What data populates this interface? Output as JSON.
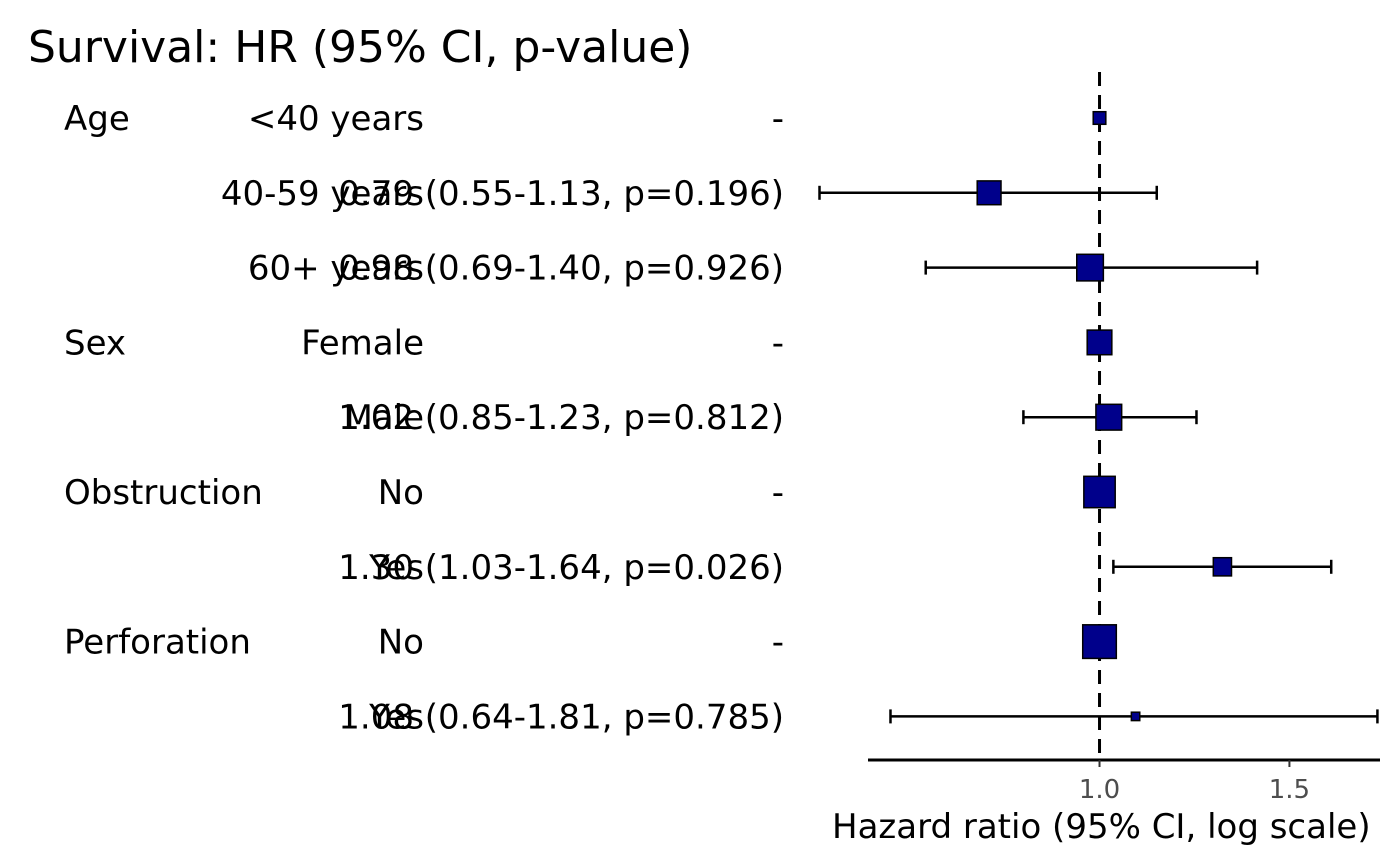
{
  "chart_data": {
    "type": "forest",
    "title": "Survival: HR (95% CI, p-value)",
    "xlabel": "Hazard ratio (95% CI, log scale)",
    "x_scale": "log",
    "xlim": [
      0.61,
      1.82
    ],
    "x_ticks": [
      {
        "value": 1.0,
        "label": "1.0"
      },
      {
        "value": 1.5,
        "label": "1.5"
      }
    ],
    "reference_line": 1.0,
    "marker_color": "#00008B",
    "rows": [
      {
        "variable": "Age",
        "level": "<40 years",
        "hr_text": "-",
        "hr": 1.0,
        "lower": null,
        "upper": null,
        "size": 0.45
      },
      {
        "variable": "",
        "level": "40-59 years",
        "hr_text": "0.79 (0.55-1.13, p=0.196)",
        "hr": 0.79,
        "lower": 0.55,
        "upper": 1.13,
        "size": 0.85
      },
      {
        "variable": "",
        "level": "60+ years",
        "hr_text": "0.98 (0.69-1.40, p=0.926)",
        "hr": 0.98,
        "lower": 0.69,
        "upper": 1.4,
        "size": 0.95
      },
      {
        "variable": "Sex",
        "level": "Female",
        "hr_text": "-",
        "hr": 1.0,
        "lower": null,
        "upper": null,
        "size": 0.88
      },
      {
        "variable": "",
        "level": "Male",
        "hr_text": "1.02 (0.85-1.23, p=0.812)",
        "hr": 1.02,
        "lower": 0.85,
        "upper": 1.23,
        "size": 0.92
      },
      {
        "variable": "Obstruction",
        "level": "No",
        "hr_text": "-",
        "hr": 1.0,
        "lower": null,
        "upper": null,
        "size": 1.12
      },
      {
        "variable": "",
        "level": "Yes",
        "hr_text": "1.30 (1.03-1.64, p=0.026)",
        "hr": 1.3,
        "lower": 1.03,
        "upper": 1.64,
        "size": 0.65
      },
      {
        "variable": "Perforation",
        "level": "No",
        "hr_text": "-",
        "hr": 1.0,
        "lower": null,
        "upper": null,
        "size": 1.2
      },
      {
        "variable": "",
        "level": "Yes",
        "hr_text": "1.08 (0.64-1.81, p=0.785)",
        "hr": 1.08,
        "lower": 0.64,
        "upper": 1.81,
        "size": 0.3
      }
    ]
  }
}
